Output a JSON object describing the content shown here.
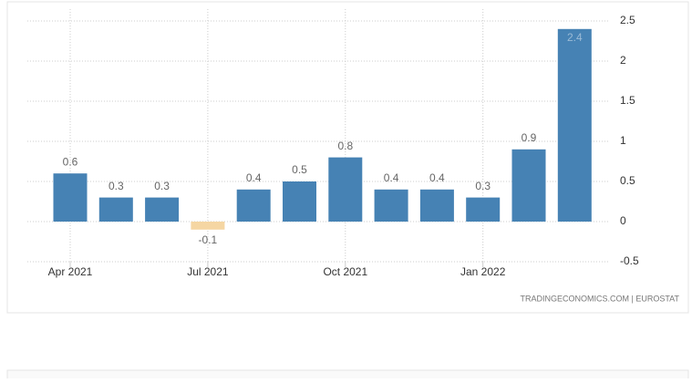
{
  "chart_data": {
    "type": "bar",
    "categories": [
      "Apr 2021",
      null,
      null,
      "Jul 2021",
      null,
      null,
      "Oct 2021",
      null,
      null,
      "Jan 2022",
      null,
      null
    ],
    "values": [
      0.6,
      0.3,
      0.3,
      -0.1,
      0.4,
      0.5,
      0.8,
      0.4,
      0.4,
      0.3,
      0.9,
      2.4
    ],
    "colors": [
      "#4682b4",
      "#4682b4",
      "#4682b4",
      "#f5d6a3",
      "#4682b4",
      "#4682b4",
      "#4682b4",
      "#4682b4",
      "#4682b4",
      "#4682b4",
      "#4682b4",
      "#4682b4"
    ],
    "ylim": [
      -0.5,
      2.5
    ],
    "yticks": [
      -0.5,
      0,
      0.5,
      1,
      1.5,
      2,
      2.5
    ],
    "grid": true,
    "source": "TRADINGECONOMICS.COM | EUROSTAT"
  }
}
